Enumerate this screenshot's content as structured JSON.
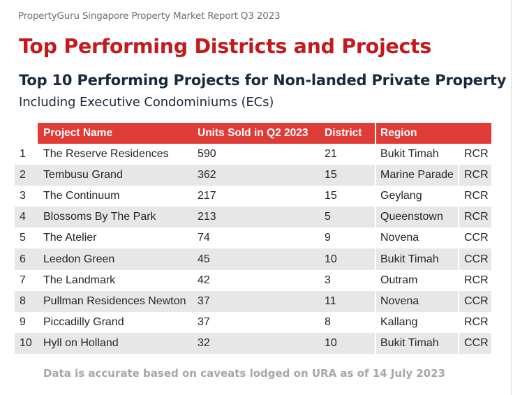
{
  "report_title": "PropertyGuru Singapore Property Market Report Q3 2023",
  "section_title": "Top Performing Districts and Projects",
  "table_title": "Top 10 Performing Projects for Non-landed Private Property",
  "table_subtitle": "Including Executive Condominiums (ECs)",
  "table": {
    "headers": {
      "project_name": "Project Name",
      "units_sold": "Units Sold in Q2 2023",
      "district": "District",
      "region": "Region"
    },
    "rows": [
      {
        "rank": "1",
        "project": "The Reserve Residences",
        "units": "590",
        "district": "21",
        "region": "Bukit Timah",
        "type": "RCR"
      },
      {
        "rank": "2",
        "project": "Tembusu Grand",
        "units": "362",
        "district": "15",
        "region": "Marine Parade",
        "type": "RCR"
      },
      {
        "rank": "3",
        "project": "The Continuum",
        "units": "217",
        "district": "15",
        "region": "Geylang",
        "type": "RCR"
      },
      {
        "rank": "4",
        "project": "Blossoms By The Park",
        "units": "213",
        "district": "5",
        "region": "Queenstown",
        "type": "RCR"
      },
      {
        "rank": "5",
        "project": "The Atelier",
        "units": "74",
        "district": "9",
        "region": "Novena",
        "type": "CCR"
      },
      {
        "rank": "6",
        "project": "Leedon Green",
        "units": "45",
        "district": "10",
        "region": "Bukit Timah",
        "type": "CCR"
      },
      {
        "rank": "7",
        "project": "The Landmark",
        "units": "42",
        "district": "3",
        "region": "Outram",
        "type": "RCR"
      },
      {
        "rank": "8",
        "project": "Pullman Residences Newton",
        "units": "37",
        "district": "11",
        "region": "Novena",
        "type": "CCR"
      },
      {
        "rank": "9",
        "project": "Piccadilly Grand",
        "units": "37",
        "district": "8",
        "region": "Kallang",
        "type": "RCR"
      },
      {
        "rank": "10",
        "project": "Hyll on Holland",
        "units": "32",
        "district": "10",
        "region": "Bukit Timah",
        "type": "CCR"
      }
    ]
  },
  "footnote": "Data is accurate based on caveats lodged on URA as of 14 July 2023",
  "colors": {
    "accent_red": "#c21a1f",
    "header_red": "#e03c37",
    "title_navy": "#1a2a3e",
    "stripe_gray": "#e7e7e7",
    "footnote_gray": "#a6a6a6"
  }
}
